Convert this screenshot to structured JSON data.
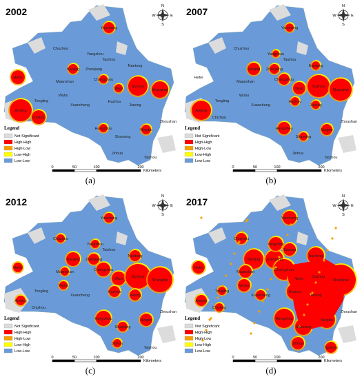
{
  "panels": [
    {
      "year": "2002",
      "label": "(a)"
    },
    {
      "year": "2007",
      "label": "(b)"
    },
    {
      "year": "2012",
      "label": "(c)"
    },
    {
      "year": "2017",
      "label": "(d)"
    }
  ],
  "cities": [
    "Yancheng",
    "Chuzhou",
    "Yangzhou",
    "Taizhou",
    "Hefei",
    "Nanjing",
    "Zhenjiang",
    "Nantong",
    "Changzhou",
    "Wuxi",
    "Suzhou",
    "Shanghai",
    "Maanshan",
    "Wuhu",
    "Tongling",
    "Anqing",
    "Chizhou",
    "Xuancheng",
    "Huzhou",
    "Jiaxing",
    "Hangzhou",
    "Shaoxing",
    "Ningbo",
    "Jinhua",
    "Taizhou",
    "Zhoushan"
  ],
  "legend": {
    "title": "Legend",
    "items": [
      {
        "label": "Not Significant",
        "color": "#dcdcdc"
      },
      {
        "label": "High-High",
        "color": "#ff0000"
      },
      {
        "label": "High-Low",
        "color": "#f5a000"
      },
      {
        "label": "Low-High",
        "color": "#ffff00"
      },
      {
        "label": "Low-Low",
        "color": "#6a9bd8"
      }
    ]
  },
  "scale": {
    "ticks": [
      "0",
      "50",
      "100",
      "200"
    ],
    "unit": "Kilometers"
  },
  "compass": {
    "n": "N",
    "e": "E",
    "s": "S",
    "w": "W"
  }
}
